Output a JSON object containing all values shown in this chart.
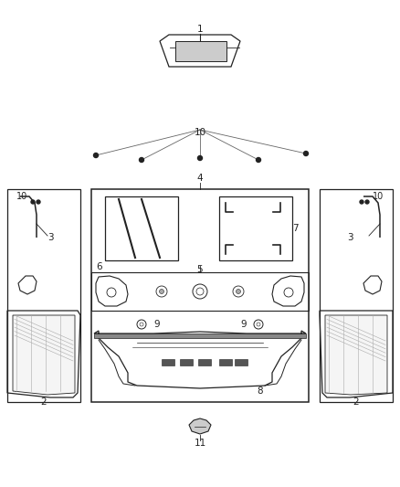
{
  "bg_color": "#ffffff",
  "lc": "#222222",
  "fig_width": 4.38,
  "fig_height": 5.33,
  "dpi": 100
}
